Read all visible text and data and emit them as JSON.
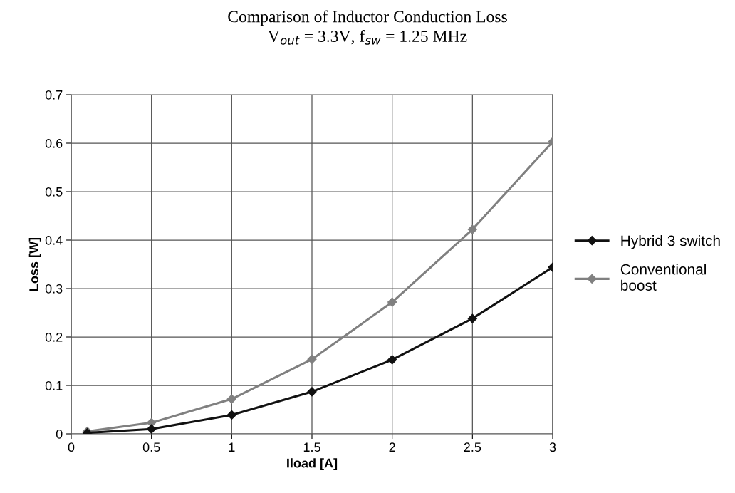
{
  "chart_data": {
    "type": "line",
    "title": "Comparison of Inductor Conduction Loss",
    "subtitle": "V$_{out}$ = 3.3V, f$_{sw}$ = 1.25 MHz",
    "xlabel": "Iload [A]",
    "ylabel": "Loss [W]",
    "x": [
      0.1,
      0.5,
      1,
      1.5,
      2,
      2.5,
      3
    ],
    "series": [
      {
        "name": "Hybrid 3 switch",
        "color": "#111111",
        "values": [
          0.002,
          0.01,
          0.039,
          0.087,
          0.153,
          0.238,
          0.344
        ]
      },
      {
        "name": "Conventional\nboost",
        "color": "#808080",
        "values": [
          0.005,
          0.023,
          0.072,
          0.154,
          0.272,
          0.422,
          0.603
        ]
      }
    ],
    "xlim": [
      0,
      3
    ],
    "xticks": [
      0,
      0.5,
      1,
      1.5,
      2,
      2.5,
      3
    ],
    "ylim": [
      0,
      0.7
    ],
    "yticks": [
      0,
      0.1,
      0.2,
      0.3,
      0.4,
      0.5,
      0.6,
      0.7
    ],
    "grid": true,
    "legend": "right",
    "marker": "diamond",
    "line_style": "solid"
  }
}
